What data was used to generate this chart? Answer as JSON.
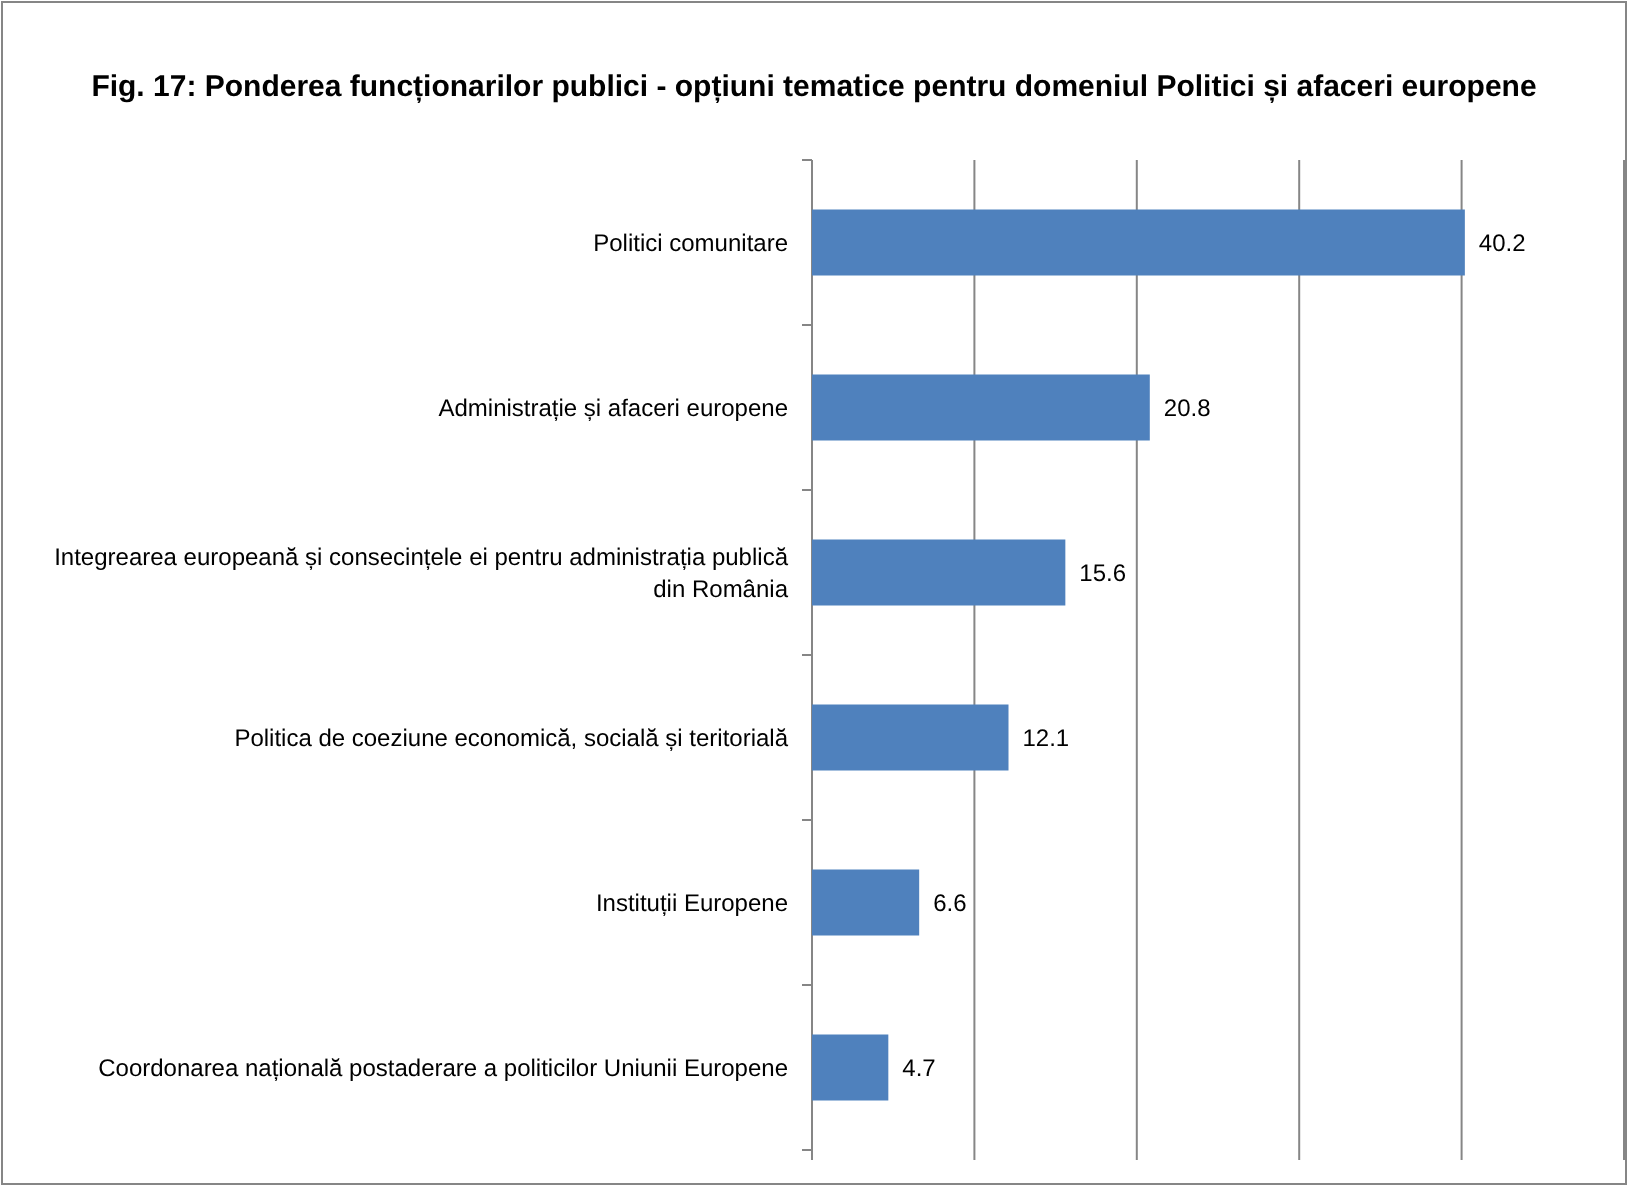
{
  "chart_data": {
    "type": "bar",
    "orientation": "horizontal",
    "title": "Fig. 17: Ponderea funcționarilor publici - opțiuni tematice pentru domeniul Politici și afaceri europene",
    "categories": [
      "Politici comunitare",
      "Administrație și afaceri europene",
      "Integrearea europeană și consecințele ei pentru administrația publică din România",
      "Politica de coeziune economică, socială și teritorială",
      "Instituții Europene",
      "Coordonarea națională postaderare a politicilor Uniunii Europene"
    ],
    "values": [
      40.2,
      20.8,
      15.6,
      12.1,
      6.6,
      4.7
    ],
    "color": "#4f81bd",
    "xlim": [
      0,
      50
    ],
    "xticks": [
      {
        "value": 0,
        "label": null
      },
      {
        "value": 10,
        "label": null
      },
      {
        "value": 20,
        "label": null
      },
      {
        "value": 30,
        "label": null
      },
      {
        "value": 40,
        "label": null
      },
      {
        "value": 50,
        "label": null
      }
    ],
    "grid": "x",
    "data_labels": true,
    "tick_labels": "y"
  }
}
